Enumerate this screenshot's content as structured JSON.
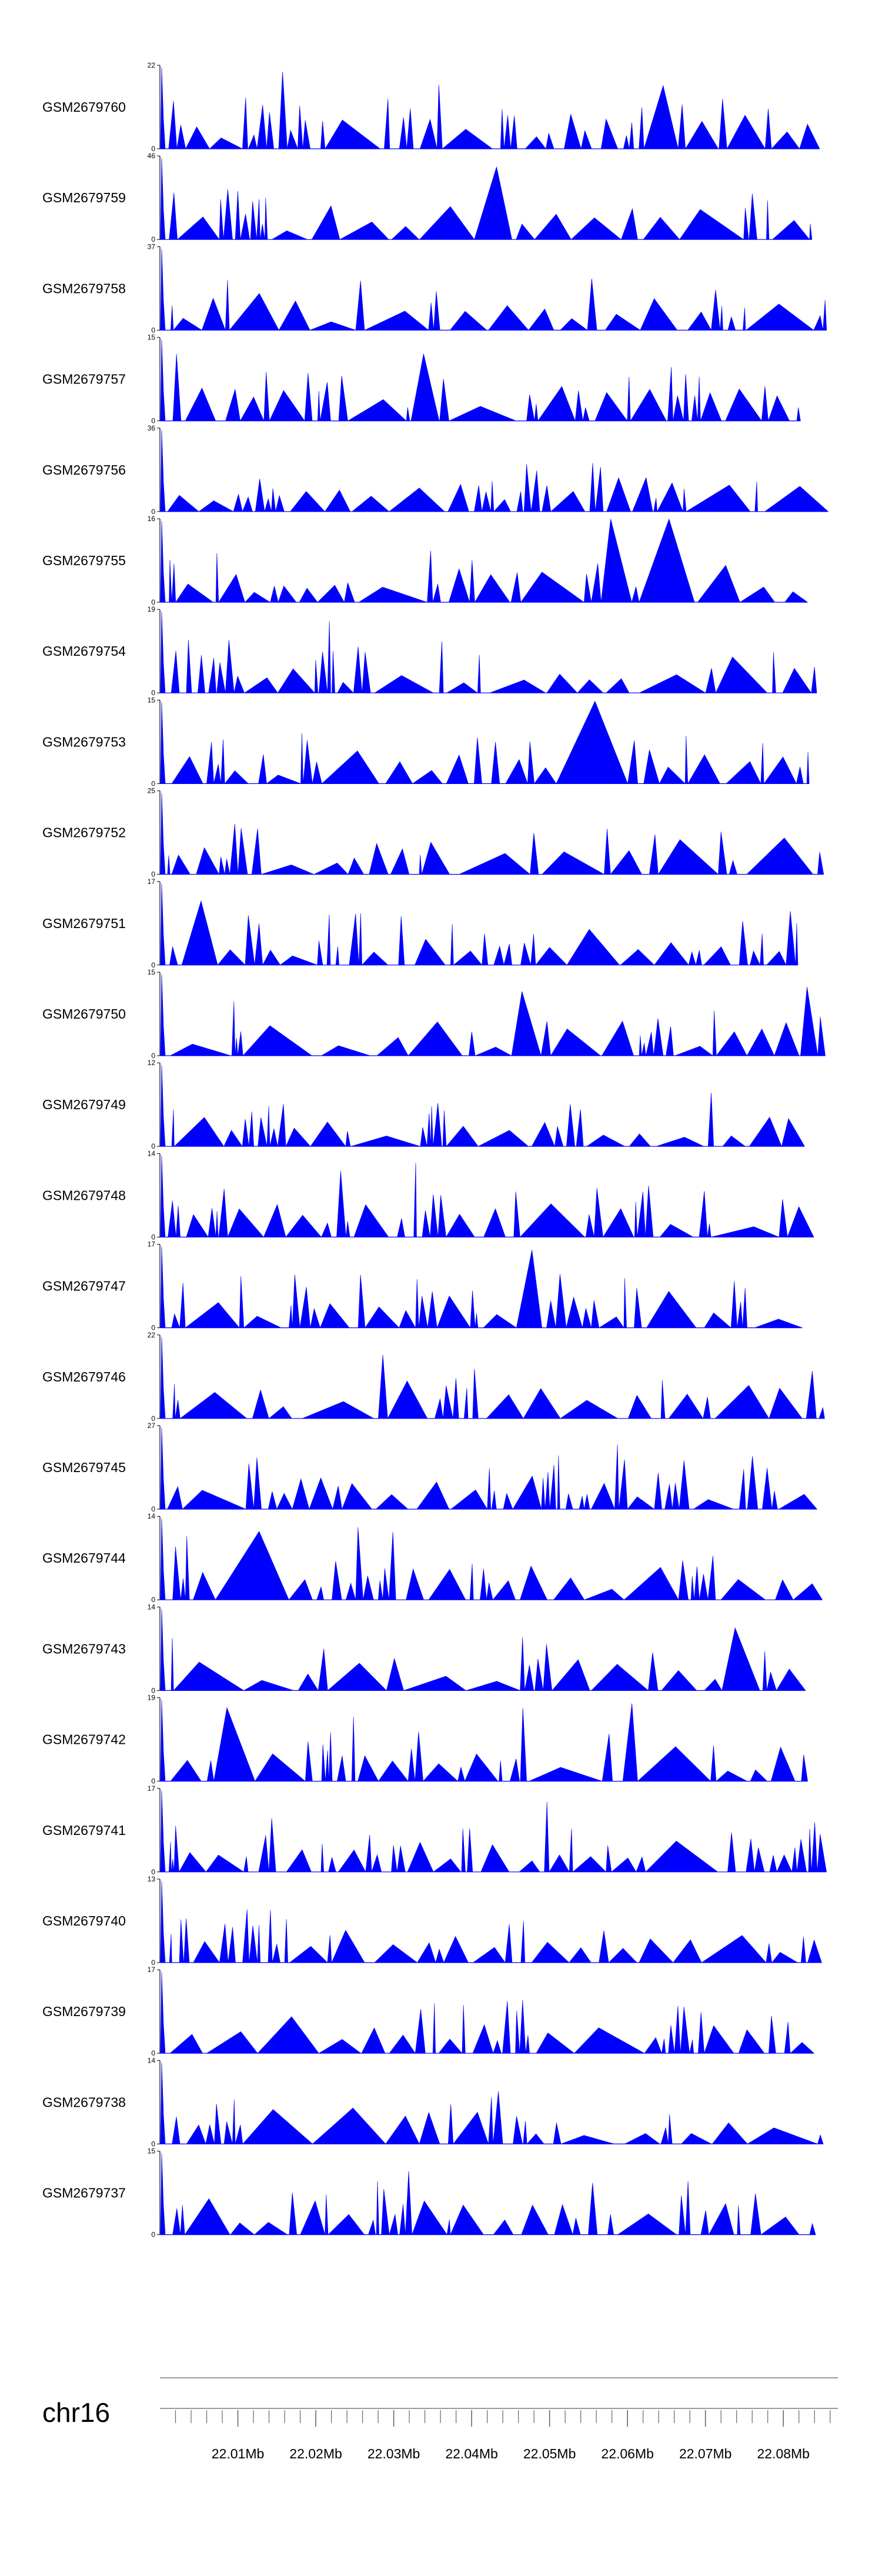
{
  "chart_data": {
    "type": "area",
    "chromosome": "chr16",
    "x_axis": {
      "unit": "Mb",
      "range": [
        22.0,
        22.087
      ],
      "tick_labels": [
        "22.01Mb",
        "22.02Mb",
        "22.03Mb",
        "22.04Mb",
        "22.05Mb",
        "22.06Mb",
        "22.07Mb",
        "22.08Mb"
      ],
      "tick_values": [
        22.01,
        22.02,
        22.03,
        22.04,
        22.05,
        22.06,
        22.07,
        22.08
      ]
    },
    "series_color": "#0000ff",
    "tracks": [
      {
        "name": "GSM2679760",
        "ymax": "22",
        "ymin": "0",
        "seed": 11
      },
      {
        "name": "GSM2679759",
        "ymax": "46",
        "ymin": "0",
        "seed": 23
      },
      {
        "name": "GSM2679758",
        "ymax": "37",
        "ymin": "0",
        "seed": 37
      },
      {
        "name": "GSM2679757",
        "ymax": "15",
        "ymin": "0",
        "seed": 41
      },
      {
        "name": "GSM2679756",
        "ymax": "36",
        "ymin": "0",
        "seed": 53
      },
      {
        "name": "GSM2679755",
        "ymax": "16",
        "ymin": "0",
        "seed": 67
      },
      {
        "name": "GSM2679754",
        "ymax": "19",
        "ymin": "0",
        "seed": 71
      },
      {
        "name": "GSM2679753",
        "ymax": "15",
        "ymin": "0",
        "seed": 83
      },
      {
        "name": "GSM2679752",
        "ymax": "25",
        "ymin": "0",
        "seed": 97
      },
      {
        "name": "GSM2679751",
        "ymax": "17",
        "ymin": "0",
        "seed": 101
      },
      {
        "name": "GSM2679750",
        "ymax": "15",
        "ymin": "0",
        "seed": 113
      },
      {
        "name": "GSM2679749",
        "ymax": "12",
        "ymin": "0",
        "seed": 127
      },
      {
        "name": "GSM2679748",
        "ymax": "14",
        "ymin": "0",
        "seed": 131
      },
      {
        "name": "GSM2679747",
        "ymax": "17",
        "ymin": "0",
        "seed": 149
      },
      {
        "name": "GSM2679746",
        "ymax": "22",
        "ymin": "0",
        "seed": 151
      },
      {
        "name": "GSM2679745",
        "ymax": "27",
        "ymin": "0",
        "seed": 163
      },
      {
        "name": "GSM2679744",
        "ymax": "14",
        "ymin": "0",
        "seed": 173
      },
      {
        "name": "GSM2679743",
        "ymax": "14",
        "ymin": "0",
        "seed": 181
      },
      {
        "name": "GSM2679742",
        "ymax": "19",
        "ymin": "0",
        "seed": 191
      },
      {
        "name": "GSM2679741",
        "ymax": "17",
        "ymin": "0",
        "seed": 199
      },
      {
        "name": "GSM2679740",
        "ymax": "13",
        "ymin": "0",
        "seed": 211
      },
      {
        "name": "GSM2679739",
        "ymax": "17",
        "ymin": "0",
        "seed": 223
      },
      {
        "name": "GSM2679738",
        "ymax": "14",
        "ymin": "0",
        "seed": 227
      },
      {
        "name": "GSM2679737",
        "ymax": "15",
        "ymin": "0",
        "seed": 239
      }
    ]
  }
}
